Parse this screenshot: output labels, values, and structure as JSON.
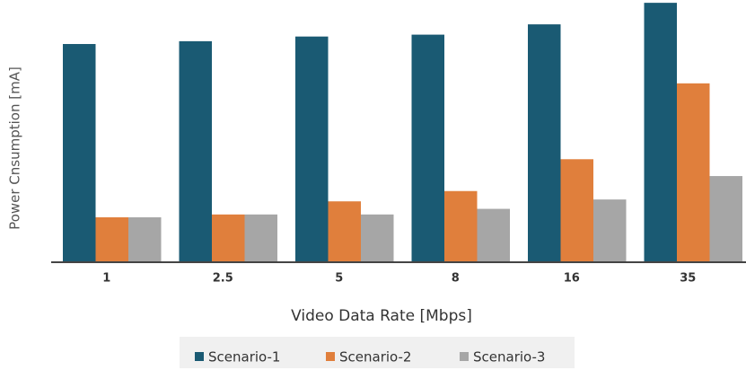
{
  "chart_data": {
    "type": "bar",
    "x_label": "Video Data Rate [Mbps]",
    "y_label": "Power Cnsumption [mA]",
    "categories": [
      "1",
      "2.5",
      "5",
      "8",
      "16",
      "35"
    ],
    "series": [
      {
        "name": "Scenario-1",
        "color": "#1a5a73",
        "values": [
          233,
          236,
          241,
          243,
          254,
          277
        ]
      },
      {
        "name": "Scenario-2",
        "color": "#e07f3c",
        "values": [
          48,
          51,
          65,
          76,
          110,
          191
        ]
      },
      {
        "name": "Scenario-3",
        "color": "#a6a6a6",
        "values": [
          48,
          51,
          51,
          57,
          67,
          92
        ]
      }
    ],
    "ylim": [
      0,
      280
    ]
  }
}
